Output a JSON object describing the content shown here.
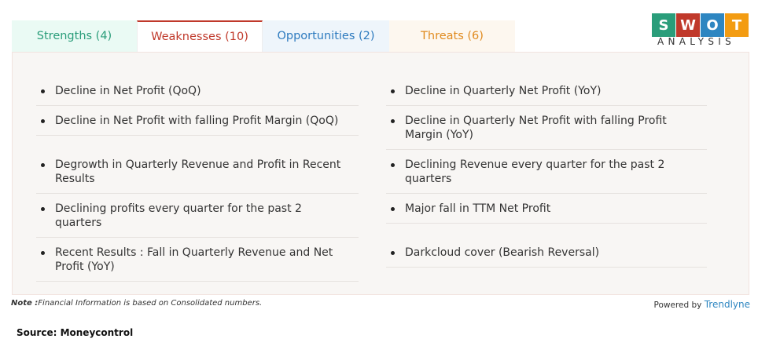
{
  "tabs": [
    "Strengths (4)",
    "Weaknesses (10)",
    "Opportunities (2)",
    "Threats (6)"
  ],
  "logo": {
    "letters": [
      "S",
      "W",
      "O",
      "T"
    ],
    "caption": "ANALYSIS"
  },
  "weaknesses": {
    "left": [
      "Decline in Net Profit (QoQ)",
      "Decline in Net Profit with falling Profit Margin (QoQ)",
      "Degrowth in Quarterly Revenue and Profit in Recent Results",
      "Declining profits every quarter for the past 2 quarters",
      "Recent Results : Fall in Quarterly Revenue and Net Profit (YoY)"
    ],
    "right": [
      "Decline in Quarterly Net Profit (YoY)",
      "Decline in Quarterly Net Profit with falling Profit Margin (YoY)",
      "Declining Revenue every quarter for the past 2 quarters",
      "Major fall in TTM Net Profit",
      "Darkcloud cover (Bearish Reversal)"
    ]
  },
  "note": {
    "label": "Note :",
    "text": "Financial Information is based on Consolidated numbers."
  },
  "powered": {
    "text": "Powered by",
    "brand": "Trendlyne"
  },
  "source": "Source: Moneycontrol"
}
